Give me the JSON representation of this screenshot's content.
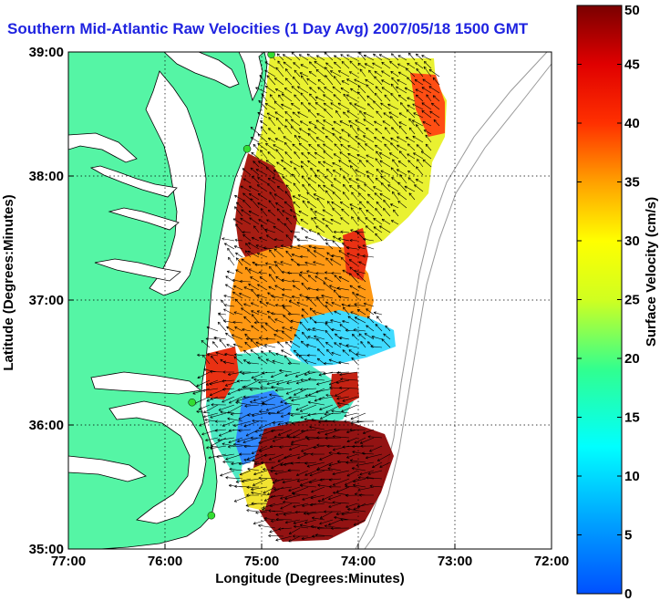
{
  "title": "Southern Mid-Atlantic Raw Velocities (1 Day Avg) 2007/05/18 1500 GMT",
  "map": {
    "xlabel": "Longitude (Degrees:Minutes)",
    "ylabel": "Latitude (Degrees:Minutes)",
    "x_ticks": [
      "77:00",
      "76:00",
      "75:00",
      "74:00",
      "73:00",
      "72:00"
    ],
    "y_ticks": [
      "39:00",
      "38:00",
      "37:00",
      "36:00",
      "35:00"
    ],
    "x_range": [
      -77,
      -72
    ],
    "y_range": [
      35,
      39
    ],
    "grid": "dotted",
    "colors": {
      "land": "#55f5a5",
      "water": "#ffffff",
      "frame": "#000000",
      "title": "#1f23e0",
      "station": "#33dd33"
    }
  },
  "colorbar": {
    "label": "Surface Velocity (cm/s)",
    "min": 0,
    "max": 50,
    "ticks": [
      "0",
      "5",
      "10",
      "15",
      "20",
      "25",
      "30",
      "35",
      "40",
      "45",
      "50"
    ],
    "colormap": "jet"
  },
  "stations": [
    {
      "lon": -74.9,
      "lat": 38.98
    },
    {
      "lon": -75.15,
      "lat": 38.22
    },
    {
      "lon": -75.72,
      "lat": 36.18
    },
    {
      "lon": -75.52,
      "lat": 35.27
    }
  ]
}
